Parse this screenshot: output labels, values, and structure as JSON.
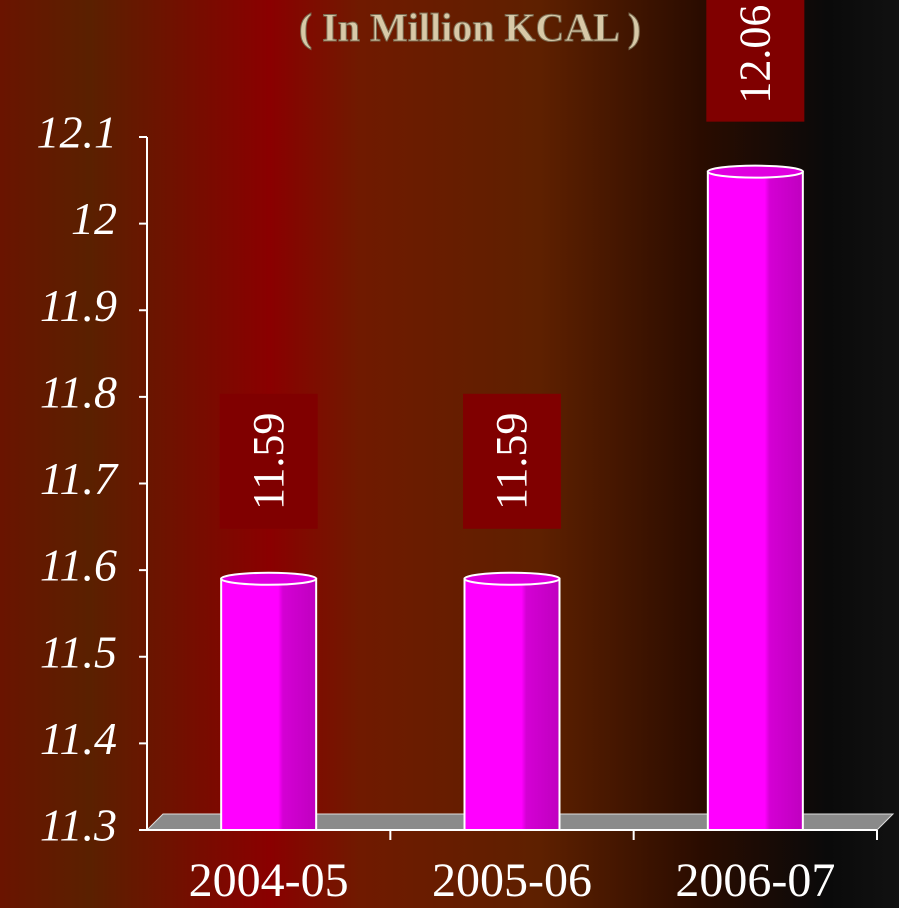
{
  "chart_data": {
    "type": "bar",
    "title": "( In Million KCAL )",
    "categories": [
      "2004-05",
      "2005-06",
      "2006-07"
    ],
    "values": [
      11.59,
      11.59,
      12.06
    ],
    "color": "#ff00ff",
    "ylim": [
      11.3,
      12.1
    ],
    "yticks": [
      11.3,
      11.4,
      11.5,
      11.6,
      11.7,
      11.8,
      11.9,
      12,
      12.1
    ]
  }
}
